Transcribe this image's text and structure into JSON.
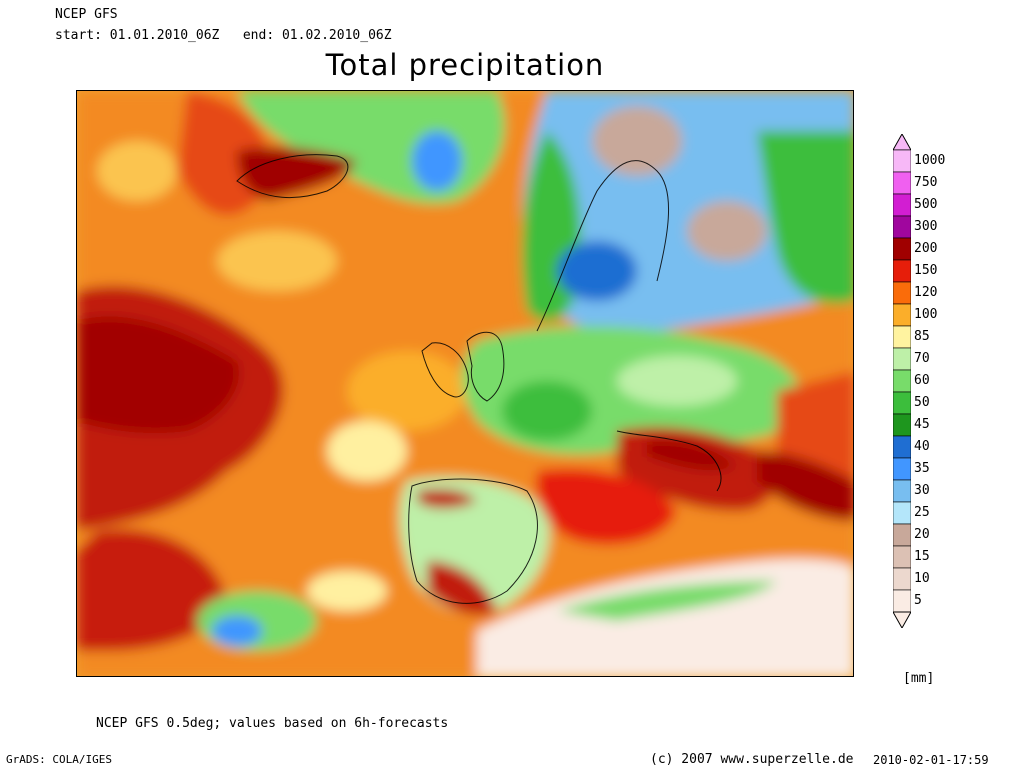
{
  "header": {
    "model": "NCEP GFS",
    "period": "start: 01.01.2010_06Z   end: 01.02.2010_06Z",
    "title": "Total precipitation"
  },
  "legend": {
    "unit": "[mm]",
    "levels": [
      {
        "label": "1000",
        "color": "#f7b8f7"
      },
      {
        "label": "750",
        "color": "#f060f0"
      },
      {
        "label": "500",
        "color": "#d21ed2"
      },
      {
        "label": "300",
        "color": "#a0069e"
      },
      {
        "label": "200",
        "color": "#a00000"
      },
      {
        "label": "150",
        "color": "#e61e0a"
      },
      {
        "label": "120",
        "color": "#fa6c0a"
      },
      {
        "label": "100",
        "color": "#fbae2a"
      },
      {
        "label": "85",
        "color": "#fff3a0"
      },
      {
        "label": "70",
        "color": "#bef0a8"
      },
      {
        "label": "60",
        "color": "#78dc6a"
      },
      {
        "label": "50",
        "color": "#3cbe3c"
      },
      {
        "label": "45",
        "color": "#1e961e"
      },
      {
        "label": "40",
        "color": "#1f6ed2"
      },
      {
        "label": "35",
        "color": "#4196ff"
      },
      {
        "label": "30",
        "color": "#78bef0"
      },
      {
        "label": "25",
        "color": "#b4e6fa"
      },
      {
        "label": "20",
        "color": "#c8a89a"
      },
      {
        "label": "15",
        "color": "#dcc1b4"
      },
      {
        "label": "10",
        "color": "#ecd8ce"
      },
      {
        "label": "5",
        "color": "#faece4"
      }
    ]
  },
  "footer": {
    "note": "NCEP GFS 0.5deg; values based on 6h-forecasts",
    "software": "GrADS: COLA/IGES",
    "copyright": "(c) 2007 www.superzelle.de",
    "timestamp": "2010-02-01-17:59"
  }
}
